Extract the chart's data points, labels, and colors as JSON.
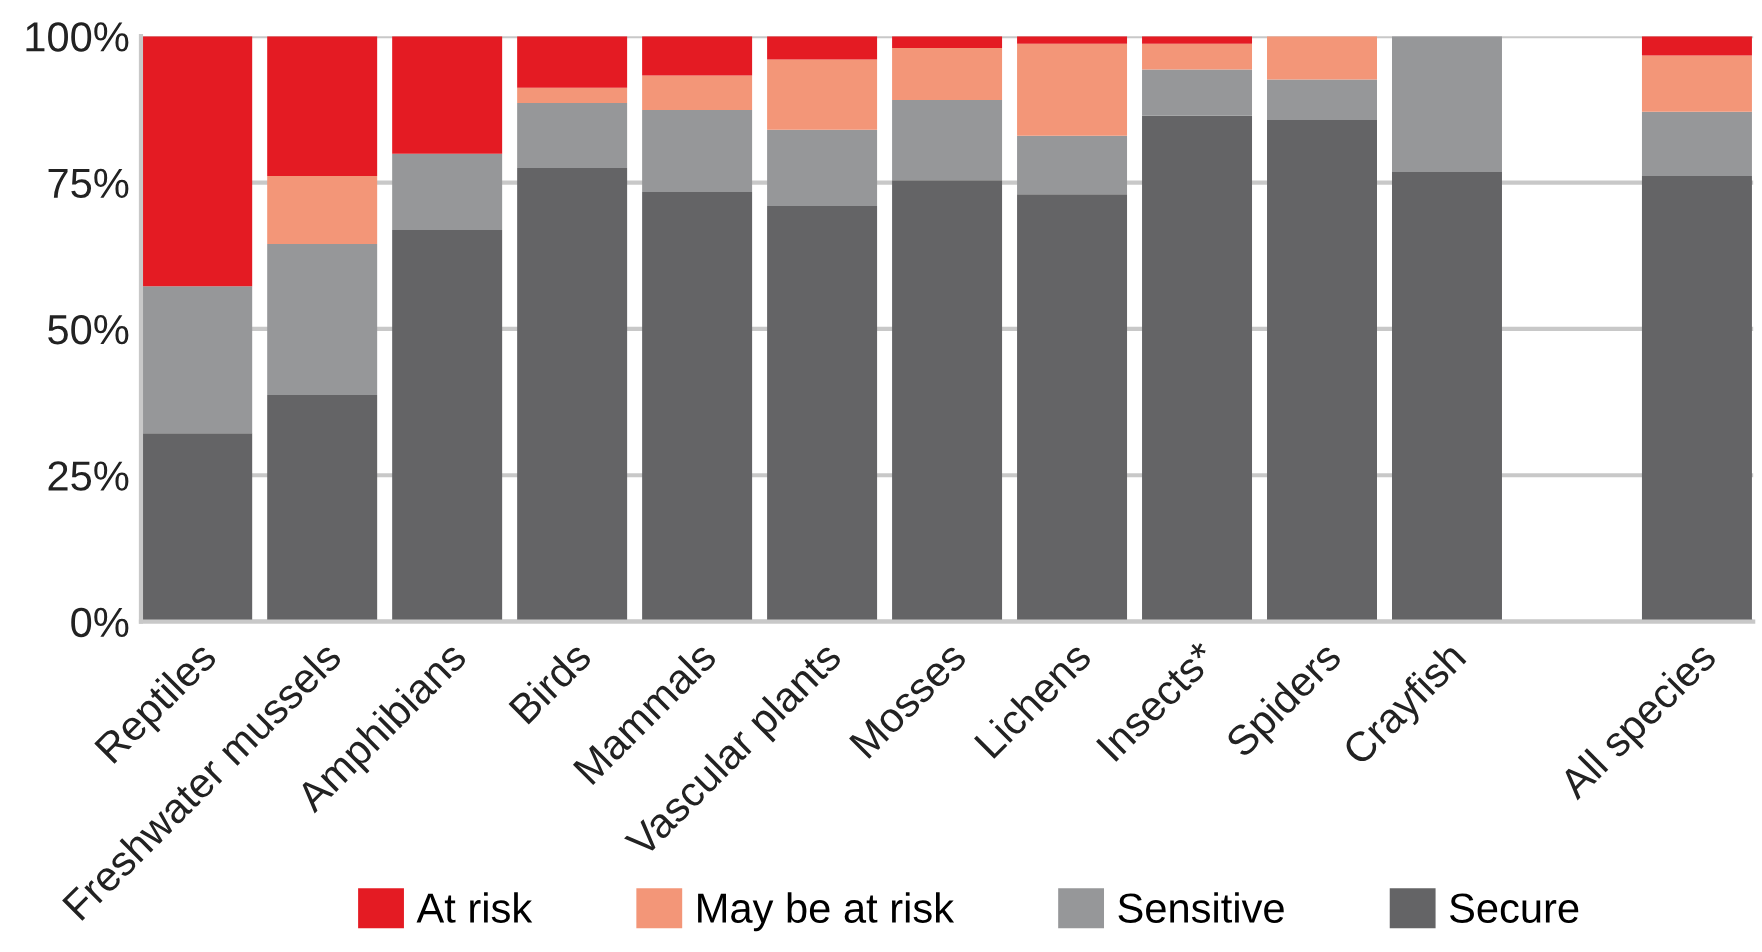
{
  "chart_data": {
    "type": "bar",
    "stacked": true,
    "categories": [
      "Reptiles",
      "Freshwater mussels",
      "Amphibians",
      "Birds",
      "Mammals",
      "Vascular plants",
      "Mosses",
      "Lichens",
      "Insects*",
      "Spiders",
      "Crayfish",
      null,
      "All species"
    ],
    "series": [
      {
        "name": "Secure",
        "color": "#646466",
        "values": [
          32.2,
          38.7,
          66.9,
          77.5,
          73.4,
          71,
          75.4,
          73,
          86.4,
          85.7,
          76.8,
          null,
          76.1
        ]
      },
      {
        "name": "Sensitive",
        "color": "#969799",
        "values": [
          25.1,
          25.8,
          13,
          11.1,
          14,
          13,
          13.7,
          10,
          7.9,
          6.9,
          23.2,
          null,
          11
        ]
      },
      {
        "name": "May be at risk",
        "color": "#f39678",
        "values": [
          0,
          11.6,
          0,
          2.6,
          5.9,
          12,
          8.9,
          15.7,
          4.4,
          7.4,
          0,
          null,
          9.6
        ]
      },
      {
        "name": "At risk",
        "color": "#e41b23",
        "values": [
          42.7,
          23.9,
          20.1,
          8.8,
          6.7,
          4,
          2,
          1.3,
          1.3,
          0,
          0,
          null,
          3.3
        ]
      }
    ],
    "ylim": [
      0,
      100
    ],
    "yticks": [
      {
        "value": 0,
        "label": "0%"
      },
      {
        "value": 25,
        "label": "25%"
      },
      {
        "value": 50,
        "label": "50%"
      },
      {
        "value": 75,
        "label": "75%"
      },
      {
        "value": 100,
        "label": "100%"
      }
    ],
    "grid": "y",
    "legend": "bottom"
  }
}
